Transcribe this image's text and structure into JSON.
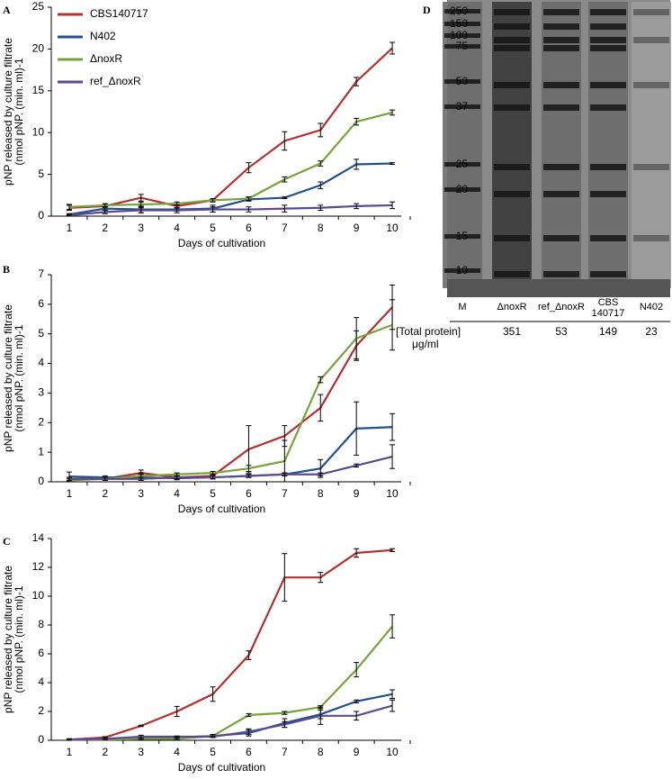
{
  "chart_data": [
    {
      "type": "line",
      "panel": "A",
      "xlabel": "Days of cultivation",
      "ylabel": [
        "pNP released by culture filtrate",
        "(nmol pNP. (min. ml)-1"
      ],
      "categories": [
        "1",
        "2",
        "3",
        "4",
        "5",
        "6",
        "7",
        "8",
        "9",
        "10"
      ],
      "ylim": [
        0,
        25
      ],
      "yticks": [
        0,
        5,
        10,
        15,
        20,
        25
      ],
      "legend": "upper left",
      "series": [
        {
          "name": "CBS140717",
          "color": "#b23030",
          "values": [
            1.0,
            1.2,
            2.2,
            1.2,
            1.9,
            5.8,
            9.0,
            10.3,
            16.1,
            20.1
          ],
          "errors": [
            0.3,
            0.2,
            0.4,
            0.2,
            0.1,
            0.6,
            1.1,
            0.8,
            0.5,
            0.7
          ]
        },
        {
          "name": "N402",
          "color": "#22518c",
          "values": [
            0.2,
            0.9,
            0.8,
            0.8,
            0.9,
            2.0,
            2.2,
            3.7,
            6.2,
            6.3
          ],
          "errors": [
            0.1,
            0.2,
            0.4,
            0.2,
            0.4,
            0.2,
            0.1,
            0.4,
            0.6,
            0.1
          ]
        },
        {
          "name": "ΔnoxR",
          "color": "#79a33b",
          "values": [
            1.1,
            1.3,
            1.4,
            1.5,
            1.9,
            2.1,
            4.4,
            6.3,
            11.3,
            12.4
          ],
          "errors": [
            0.3,
            0.2,
            0.3,
            0.2,
            0.2,
            0.2,
            0.3,
            0.3,
            0.4,
            0.3
          ]
        },
        {
          "name": "ref_ΔnoxR",
          "color": "#5c4a8e",
          "values": [
            0.1,
            0.5,
            0.7,
            0.7,
            0.8,
            0.8,
            0.9,
            1.0,
            1.2,
            1.3
          ],
          "errors": [
            0.1,
            0.2,
            0.3,
            0.3,
            0.3,
            0.3,
            0.4,
            0.3,
            0.3,
            0.4
          ]
        }
      ]
    },
    {
      "type": "line",
      "panel": "B",
      "xlabel": "Days of cultivation",
      "ylabel": [
        "pNP released by culture filtrate",
        "(nmol pNP. (min. ml)-1"
      ],
      "categories": [
        "1",
        "2",
        "3",
        "4",
        "5",
        "6",
        "7",
        "8",
        "9",
        "10"
      ],
      "ylim": [
        0,
        7
      ],
      "yticks": [
        0,
        1,
        2,
        3,
        4,
        5,
        6,
        7
      ],
      "series": [
        {
          "color": "#b23030",
          "values": [
            0.1,
            0.1,
            0.3,
            0.15,
            0.2,
            1.1,
            1.55,
            2.5,
            4.6,
            5.9
          ],
          "errors": [
            0.05,
            0.05,
            0.1,
            0.05,
            0.05,
            0.8,
            0.35,
            0.45,
            0.5,
            0.75
          ]
        },
        {
          "color": "#22518c",
          "values": [
            0.18,
            0.15,
            0.15,
            0.12,
            0.15,
            0.2,
            0.25,
            0.45,
            1.8,
            1.85
          ],
          "errors": [
            0.15,
            0.05,
            0.1,
            0.05,
            0.05,
            0.05,
            0.05,
            0.3,
            0.9,
            0.45
          ]
        },
        {
          "color": "#79a33b",
          "values": [
            0.05,
            0.1,
            0.2,
            0.25,
            0.3,
            0.45,
            0.7,
            3.45,
            4.85,
            5.3
          ],
          "errors": [
            0.05,
            0.05,
            0.1,
            0.05,
            0.05,
            0.1,
            0.7,
            0.1,
            0.7,
            0.85
          ]
        },
        {
          "color": "#5c4a8e",
          "values": [
            0.1,
            0.1,
            0.1,
            0.15,
            0.15,
            0.2,
            0.25,
            0.25,
            0.55,
            0.85
          ],
          "errors": [
            0.05,
            0.05,
            0.05,
            0.05,
            0.05,
            0.05,
            0.05,
            0.05,
            0.05,
            0.4
          ]
        }
      ]
    },
    {
      "type": "line",
      "panel": "C",
      "xlabel": "Days of cultivation",
      "ylabel": [
        "pNP released by culture filtrate",
        "(nmol pNP. (min. ml)-1"
      ],
      "categories": [
        "1",
        "2",
        "3",
        "4",
        "5",
        "6",
        "7",
        "8",
        "9",
        "10"
      ],
      "ylim": [
        0,
        14
      ],
      "yticks": [
        0,
        2,
        4,
        6,
        8,
        10,
        12,
        14
      ],
      "series": [
        {
          "color": "#b23030",
          "values": [
            0.05,
            0.2,
            1.0,
            2.0,
            3.2,
            5.9,
            11.3,
            11.3,
            13.0,
            13.2
          ],
          "errors": [
            0.05,
            0.05,
            0.05,
            0.35,
            0.5,
            0.3,
            1.65,
            0.35,
            0.3,
            0.1
          ]
        },
        {
          "color": "#22518c",
          "values": [
            0.05,
            0.1,
            0.2,
            0.2,
            0.3,
            0.5,
            1.2,
            1.8,
            2.7,
            3.2
          ],
          "errors": [
            0.05,
            0.05,
            0.1,
            0.05,
            0.1,
            0.2,
            0.3,
            0.3,
            0.1,
            0.3
          ]
        },
        {
          "color": "#79a33b",
          "values": [
            0.05,
            0.05,
            0.1,
            0.1,
            0.3,
            1.75,
            1.9,
            2.3,
            4.9,
            7.9
          ],
          "errors": [
            0,
            0,
            0.05,
            0.05,
            0.1,
            0.1,
            0.1,
            0.1,
            0.5,
            0.8
          ]
        },
        {
          "color": "#5c4a8e",
          "values": [
            0.05,
            0.1,
            0.25,
            0.25,
            0.25,
            0.6,
            1.1,
            1.7,
            1.7,
            2.4
          ],
          "errors": [
            0.05,
            0.05,
            0.1,
            0.05,
            0.05,
            0.2,
            0.2,
            0.6,
            0.3,
            0.4
          ]
        }
      ]
    }
  ],
  "gel": {
    "panel": "D",
    "markers": [
      250,
      150,
      100,
      75,
      50,
      37,
      25,
      20,
      15,
      10
    ],
    "lanes": [
      "M",
      "ΔnoxR",
      "ref_ΔnoxR",
      "CBS 140717",
      "N402"
    ],
    "total_protein_label": "[Total protein]",
    "unit": "μg/ml",
    "total_protein": [
      351,
      53,
      149,
      23
    ]
  }
}
